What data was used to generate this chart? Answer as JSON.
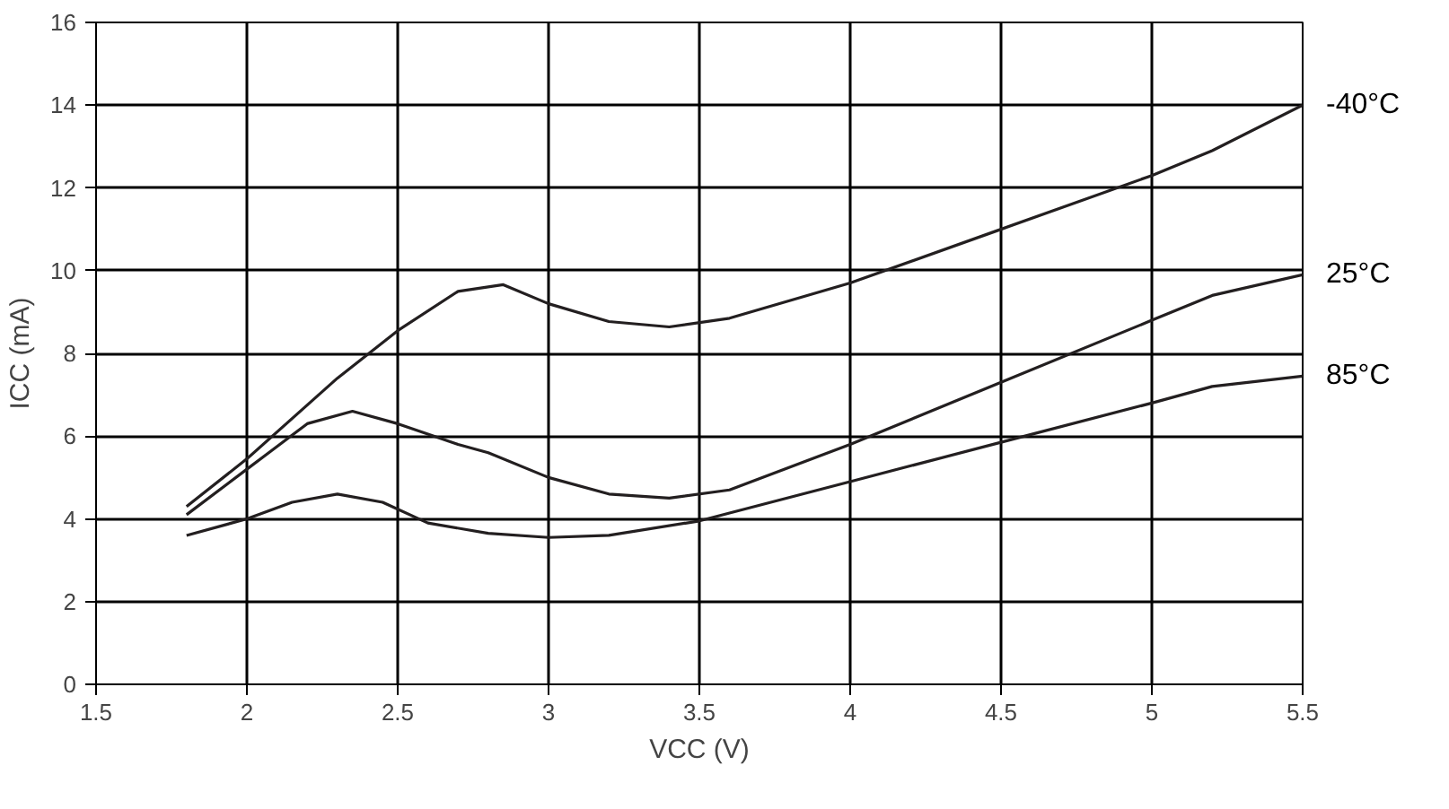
{
  "chart_data": {
    "type": "line",
    "xlabel": "VCC (V)",
    "ylabel": "ICC (mA)",
    "xlim": [
      1.5,
      5.5
    ],
    "xticks": [
      1.5,
      2,
      2.5,
      3,
      3.5,
      4,
      4.5,
      5,
      5.5
    ],
    "ylim": [
      0,
      16
    ],
    "yticks": [
      0,
      2,
      4,
      6,
      8,
      10,
      12,
      14,
      16
    ],
    "grid": true,
    "marker": "none",
    "line_style": "solid",
    "series": [
      {
        "name": "-40°C",
        "color": "#231f20",
        "x": [
          1.8,
          2.0,
          2.3,
          2.5,
          2.7,
          2.85,
          3.0,
          3.2,
          3.4,
          3.6,
          4.0,
          4.5,
          5.0,
          5.2,
          5.5
        ],
        "values": [
          4.3,
          5.45,
          7.4,
          8.55,
          9.5,
          9.66,
          9.2,
          8.77,
          8.64,
          8.85,
          9.7,
          11.0,
          12.3,
          12.9,
          14.0
        ]
      },
      {
        "name": "25°C",
        "color": "#231f20",
        "x": [
          1.8,
          2.0,
          2.2,
          2.35,
          2.5,
          2.7,
          2.8,
          3.0,
          3.2,
          3.4,
          3.6,
          4.0,
          4.5,
          5.0,
          5.2,
          5.5
        ],
        "values": [
          4.1,
          5.2,
          6.3,
          6.6,
          6.3,
          5.8,
          5.6,
          5.0,
          4.6,
          4.5,
          4.7,
          5.8,
          7.3,
          8.8,
          9.4,
          9.9
        ]
      },
      {
        "name": "85°C",
        "color": "#231f20",
        "x": [
          1.8,
          2.0,
          2.15,
          2.3,
          2.45,
          2.6,
          2.8,
          3.0,
          3.2,
          3.5,
          4.0,
          4.5,
          5.0,
          5.2,
          5.5
        ],
        "values": [
          3.6,
          4.0,
          4.4,
          4.6,
          4.4,
          3.9,
          3.65,
          3.55,
          3.6,
          3.95,
          4.9,
          5.85,
          6.8,
          7.2,
          7.45
        ]
      }
    ]
  }
}
